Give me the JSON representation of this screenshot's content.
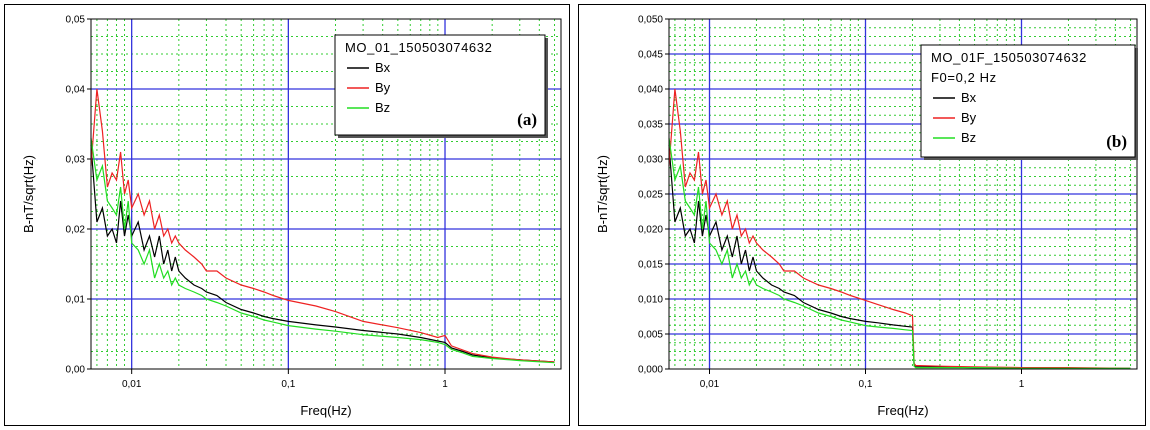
{
  "chart_data": [
    {
      "type": "line",
      "panel_label": "(a)",
      "xlabel": "Freq(Hz)",
      "ylabel": "B-nT/sqrt(Hz)",
      "xscale": "log",
      "xlim": [
        0.0055,
        5.5
      ],
      "ylim": [
        0,
        0.05
      ],
      "xticks": [
        {
          "value": 0.01,
          "label": "0,01"
        },
        {
          "value": 0.1,
          "label": "0,1"
        },
        {
          "value": 1,
          "label": "1"
        }
      ],
      "yticks": [
        {
          "value": 0,
          "label": "0,00"
        },
        {
          "value": 0.01,
          "label": "0,01"
        },
        {
          "value": 0.02,
          "label": "0,02"
        },
        {
          "value": 0.03,
          "label": "0,03"
        },
        {
          "value": 0.04,
          "label": "0,04"
        },
        {
          "value": 0.05,
          "label": "0,05"
        }
      ],
      "grid": true,
      "legend": {
        "title_lines": [
          "MO_01_150503074632"
        ],
        "placement": "top-right"
      },
      "series": [
        {
          "name": "Bx",
          "color": "#000000",
          "x": [
            0.0055,
            0.006,
            0.0065,
            0.007,
            0.0075,
            0.008,
            0.0085,
            0.009,
            0.0095,
            0.01,
            0.011,
            0.012,
            0.013,
            0.014,
            0.015,
            0.016,
            0.017,
            0.018,
            0.019,
            0.02,
            0.022,
            0.025,
            0.028,
            0.03,
            0.035,
            0.04,
            0.05,
            0.06,
            0.07,
            0.08,
            0.1,
            0.15,
            0.2,
            0.3,
            0.5,
            0.7,
            0.9,
            1.0,
            1.1,
            1.3,
            1.5,
            2,
            3,
            5
          ],
          "y": [
            0.032,
            0.021,
            0.023,
            0.019,
            0.02,
            0.018,
            0.024,
            0.019,
            0.022,
            0.019,
            0.021,
            0.017,
            0.019,
            0.016,
            0.019,
            0.015,
            0.017,
            0.014,
            0.016,
            0.014,
            0.013,
            0.012,
            0.0115,
            0.011,
            0.0105,
            0.0095,
            0.0085,
            0.008,
            0.0075,
            0.0072,
            0.0068,
            0.0063,
            0.006,
            0.0055,
            0.005,
            0.0045,
            0.004,
            0.0038,
            0.003,
            0.0025,
            0.002,
            0.0016,
            0.0013,
            0.001
          ]
        },
        {
          "name": "By",
          "color": "#ee2222",
          "x": [
            0.0055,
            0.006,
            0.0065,
            0.007,
            0.0075,
            0.008,
            0.0085,
            0.009,
            0.0095,
            0.01,
            0.011,
            0.012,
            0.013,
            0.014,
            0.015,
            0.016,
            0.017,
            0.018,
            0.019,
            0.02,
            0.022,
            0.025,
            0.028,
            0.03,
            0.035,
            0.04,
            0.05,
            0.06,
            0.07,
            0.08,
            0.1,
            0.15,
            0.2,
            0.3,
            0.5,
            0.7,
            0.9,
            1.0,
            1.1,
            1.3,
            1.5,
            2,
            3,
            5
          ],
          "y": [
            0.029,
            0.04,
            0.034,
            0.026,
            0.028,
            0.027,
            0.031,
            0.025,
            0.027,
            0.023,
            0.025,
            0.022,
            0.024,
            0.02,
            0.022,
            0.019,
            0.02,
            0.018,
            0.019,
            0.018,
            0.017,
            0.016,
            0.015,
            0.014,
            0.014,
            0.013,
            0.012,
            0.0115,
            0.011,
            0.0105,
            0.0098,
            0.009,
            0.0082,
            0.0068,
            0.0059,
            0.0052,
            0.0045,
            0.0048,
            0.0033,
            0.0027,
            0.0022,
            0.0017,
            0.0013,
            0.001
          ]
        },
        {
          "name": "Bz",
          "color": "#22dd22",
          "x": [
            0.0055,
            0.006,
            0.0065,
            0.007,
            0.0075,
            0.008,
            0.0085,
            0.009,
            0.0095,
            0.01,
            0.011,
            0.012,
            0.013,
            0.014,
            0.015,
            0.016,
            0.017,
            0.018,
            0.019,
            0.02,
            0.022,
            0.025,
            0.028,
            0.03,
            0.035,
            0.04,
            0.05,
            0.06,
            0.07,
            0.08,
            0.1,
            0.15,
            0.2,
            0.3,
            0.5,
            0.7,
            0.9,
            1.0,
            1.1,
            1.3,
            1.5,
            2,
            3,
            5
          ],
          "y": [
            0.033,
            0.027,
            0.029,
            0.024,
            0.023,
            0.022,
            0.026,
            0.02,
            0.024,
            0.018,
            0.017,
            0.015,
            0.017,
            0.013,
            0.015,
            0.013,
            0.014,
            0.012,
            0.013,
            0.012,
            0.0115,
            0.011,
            0.0105,
            0.01,
            0.0095,
            0.009,
            0.008,
            0.0075,
            0.007,
            0.0067,
            0.0062,
            0.0057,
            0.0054,
            0.0049,
            0.0045,
            0.0042,
            0.0038,
            0.0035,
            0.0028,
            0.0023,
            0.0018,
            0.0015,
            0.0012,
            0.0009
          ]
        }
      ]
    },
    {
      "type": "line",
      "panel_label": "(b)",
      "xlabel": "Freq(Hz)",
      "ylabel": "B-nT/sqrt(Hz)",
      "xscale": "log",
      "xlim": [
        0.0055,
        5.5
      ],
      "ylim": [
        0,
        0.05
      ],
      "xticks": [
        {
          "value": 0.01,
          "label": "0,01"
        },
        {
          "value": 0.1,
          "label": "0,1"
        },
        {
          "value": 1,
          "label": "1"
        }
      ],
      "yticks": [
        {
          "value": 0,
          "label": "0,000"
        },
        {
          "value": 0.005,
          "label": "0,005"
        },
        {
          "value": 0.01,
          "label": "0,010"
        },
        {
          "value": 0.015,
          "label": "0,015"
        },
        {
          "value": 0.02,
          "label": "0,020"
        },
        {
          "value": 0.025,
          "label": "0,025"
        },
        {
          "value": 0.03,
          "label": "0,030"
        },
        {
          "value": 0.035,
          "label": "0,035"
        },
        {
          "value": 0.04,
          "label": "0,040"
        },
        {
          "value": 0.045,
          "label": "0,045"
        },
        {
          "value": 0.05,
          "label": "0,050"
        }
      ],
      "grid": true,
      "legend": {
        "title_lines": [
          "MO_01F_150503074632",
          "F0=0,2 Hz"
        ],
        "placement": "top-right"
      },
      "series": [
        {
          "name": "Bx",
          "color": "#000000",
          "x": [
            0.0055,
            0.006,
            0.0065,
            0.007,
            0.0075,
            0.008,
            0.0085,
            0.009,
            0.0095,
            0.01,
            0.011,
            0.012,
            0.013,
            0.014,
            0.015,
            0.016,
            0.017,
            0.018,
            0.019,
            0.02,
            0.022,
            0.025,
            0.028,
            0.03,
            0.035,
            0.04,
            0.05,
            0.06,
            0.07,
            0.08,
            0.1,
            0.12,
            0.15,
            0.18,
            0.2,
            0.205,
            0.21,
            0.3,
            0.5,
            1,
            2,
            5
          ],
          "y": [
            0.032,
            0.021,
            0.023,
            0.019,
            0.02,
            0.018,
            0.024,
            0.019,
            0.022,
            0.019,
            0.021,
            0.017,
            0.019,
            0.016,
            0.019,
            0.015,
            0.017,
            0.014,
            0.016,
            0.014,
            0.013,
            0.012,
            0.0115,
            0.011,
            0.0105,
            0.0095,
            0.0085,
            0.008,
            0.0075,
            0.0072,
            0.0068,
            0.0066,
            0.0063,
            0.0061,
            0.006,
            0.0005,
            0.0003,
            0.0003,
            0.0002,
            0.0002,
            0.0001,
            0.0001
          ]
        },
        {
          "name": "By",
          "color": "#ee2222",
          "x": [
            0.0055,
            0.006,
            0.0065,
            0.007,
            0.0075,
            0.008,
            0.0085,
            0.009,
            0.0095,
            0.01,
            0.011,
            0.012,
            0.013,
            0.014,
            0.015,
            0.016,
            0.017,
            0.018,
            0.019,
            0.02,
            0.022,
            0.025,
            0.028,
            0.03,
            0.035,
            0.04,
            0.05,
            0.06,
            0.07,
            0.08,
            0.1,
            0.12,
            0.15,
            0.18,
            0.2,
            0.205,
            0.21,
            0.3,
            0.5,
            1,
            2,
            5
          ],
          "y": [
            0.029,
            0.04,
            0.034,
            0.026,
            0.028,
            0.027,
            0.031,
            0.025,
            0.027,
            0.023,
            0.025,
            0.022,
            0.024,
            0.02,
            0.022,
            0.019,
            0.02,
            0.018,
            0.019,
            0.018,
            0.017,
            0.016,
            0.015,
            0.014,
            0.014,
            0.013,
            0.012,
            0.0115,
            0.011,
            0.0105,
            0.0098,
            0.0092,
            0.0085,
            0.008,
            0.0076,
            0.0008,
            0.0005,
            0.0004,
            0.0003,
            0.0002,
            0.0002,
            0.0001
          ]
        },
        {
          "name": "Bz",
          "color": "#22dd22",
          "x": [
            0.0055,
            0.006,
            0.0065,
            0.007,
            0.0075,
            0.008,
            0.0085,
            0.009,
            0.0095,
            0.01,
            0.011,
            0.012,
            0.013,
            0.014,
            0.015,
            0.016,
            0.017,
            0.018,
            0.019,
            0.02,
            0.022,
            0.025,
            0.028,
            0.03,
            0.035,
            0.04,
            0.05,
            0.06,
            0.07,
            0.08,
            0.1,
            0.12,
            0.15,
            0.18,
            0.2,
            0.205,
            0.21,
            0.3,
            0.5,
            1,
            2,
            5
          ],
          "y": [
            0.033,
            0.027,
            0.029,
            0.024,
            0.023,
            0.022,
            0.026,
            0.02,
            0.024,
            0.018,
            0.017,
            0.015,
            0.017,
            0.013,
            0.015,
            0.013,
            0.014,
            0.012,
            0.013,
            0.012,
            0.0115,
            0.011,
            0.0105,
            0.01,
            0.0095,
            0.009,
            0.008,
            0.0075,
            0.007,
            0.0067,
            0.0062,
            0.006,
            0.0058,
            0.0056,
            0.0055,
            0.0004,
            0.0002,
            0.0002,
            0.0002,
            0.0001,
            0.0001,
            0.0001
          ]
        }
      ]
    }
  ]
}
